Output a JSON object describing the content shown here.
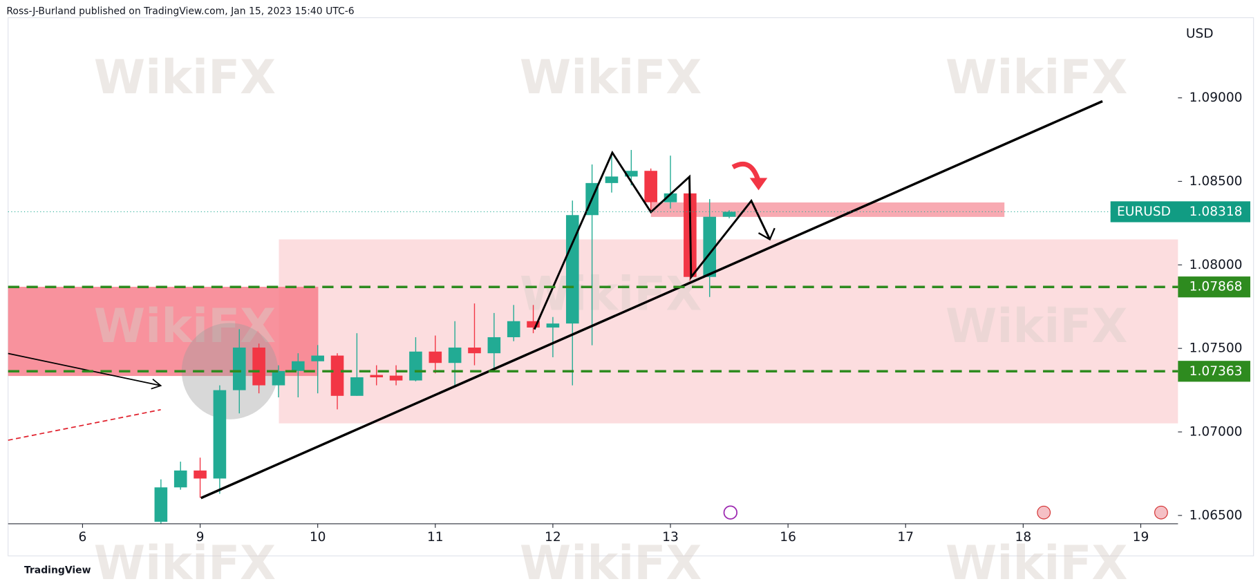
{
  "header": "Ross-J-Burland published on TradingView.com, Jan 15, 2023 15:40 UTC-6",
  "footer": "TradingView",
  "watermark": "WikiFX",
  "chart_data": {
    "type": "candlestick",
    "currency": "USD",
    "x": [
      4,
      5,
      6,
      7,
      8,
      9,
      10,
      11,
      12,
      13,
      14,
      15,
      16,
      17,
      18,
      19,
      20,
      21,
      22,
      23,
      24,
      25,
      26,
      27,
      28,
      29,
      30,
      31,
      32,
      33
    ],
    "series": [
      {
        "name": "EURUSD",
        "up_color": "#22ab94",
        "down_color": "#f23645",
        "open": [
          1.06462,
          1.06668,
          1.06769,
          1.06721,
          1.0725,
          1.07505,
          1.07279,
          1.07365,
          1.07423,
          1.07457,
          1.07216,
          1.07341,
          1.07337,
          1.07308,
          1.07481,
          1.07413,
          1.07505,
          1.07471,
          1.07567,
          1.07663,
          1.07625,
          1.07649,
          1.08298,
          1.0849,
          1.08529,
          1.08563,
          1.08375,
          1.08428,
          1.07928,
          1.08288
        ],
        "high": [
          1.06716,
          1.06822,
          1.06846,
          1.07279,
          1.07615,
          1.07529,
          1.07399,
          1.07471,
          1.0752,
          1.07471,
          1.07591,
          1.07399,
          1.07399,
          1.07567,
          1.07577,
          1.07663,
          1.07769,
          1.07712,
          1.0776,
          1.0776,
          1.07688,
          1.08385,
          1.08601,
          1.08673,
          1.08688,
          1.08577,
          1.08654,
          1.08443,
          1.08394,
          1.08327
        ],
        "low": [
          1.0645,
          1.06654,
          1.06606,
          1.0663,
          1.07111,
          1.07231,
          1.07207,
          1.07207,
          1.07231,
          1.07135,
          1.07216,
          1.07279,
          1.07279,
          1.07303,
          1.07351,
          1.07279,
          1.07399,
          1.07375,
          1.07543,
          1.07591,
          1.07447,
          1.07279,
          1.07519,
          1.08433,
          1.08476,
          1.08327,
          1.08337,
          1.07904,
          1.07808,
          1.08279
        ],
        "close": [
          1.06668,
          1.06769,
          1.06721,
          1.0725,
          1.07505,
          1.07279,
          1.07365,
          1.07423,
          1.07457,
          1.07216,
          1.07327,
          1.07327,
          1.07308,
          1.07481,
          1.07413,
          1.07505,
          1.07471,
          1.07567,
          1.07663,
          1.07625,
          1.07649,
          1.08298,
          1.0849,
          1.08529,
          1.08563,
          1.08375,
          1.08428,
          1.07928,
          1.08288,
          1.08318
        ]
      }
    ],
    "last_price": 1.08318,
    "levels": [
      1.07868,
      1.07363
    ],
    "level_color": "#2e8b1f",
    "xlim": [
      -3.8,
      55.9
    ],
    "xticks": [
      {
        "value": 0,
        "label": "6"
      },
      {
        "value": 6,
        "label": "9"
      },
      {
        "value": 12,
        "label": "10"
      },
      {
        "value": 18,
        "label": "11"
      },
      {
        "value": 24,
        "label": "12"
      },
      {
        "value": 30,
        "label": "13"
      },
      {
        "value": 36,
        "label": "16"
      },
      {
        "value": 42,
        "label": "17"
      },
      {
        "value": 48,
        "label": "18"
      },
      {
        "value": 54,
        "label": "19"
      }
    ],
    "ylim": [
      1.0645,
      1.0948
    ],
    "yticks": [
      {
        "value": 1.065,
        "label": "1.06500"
      },
      {
        "value": 1.07,
        "label": "1.07000"
      },
      {
        "value": 1.075,
        "label": "1.07500"
      },
      {
        "value": 1.08,
        "label": "1.08000"
      },
      {
        "value": 1.085,
        "label": "1.08500"
      },
      {
        "value": 1.09,
        "label": "1.09000"
      }
    ]
  }
}
